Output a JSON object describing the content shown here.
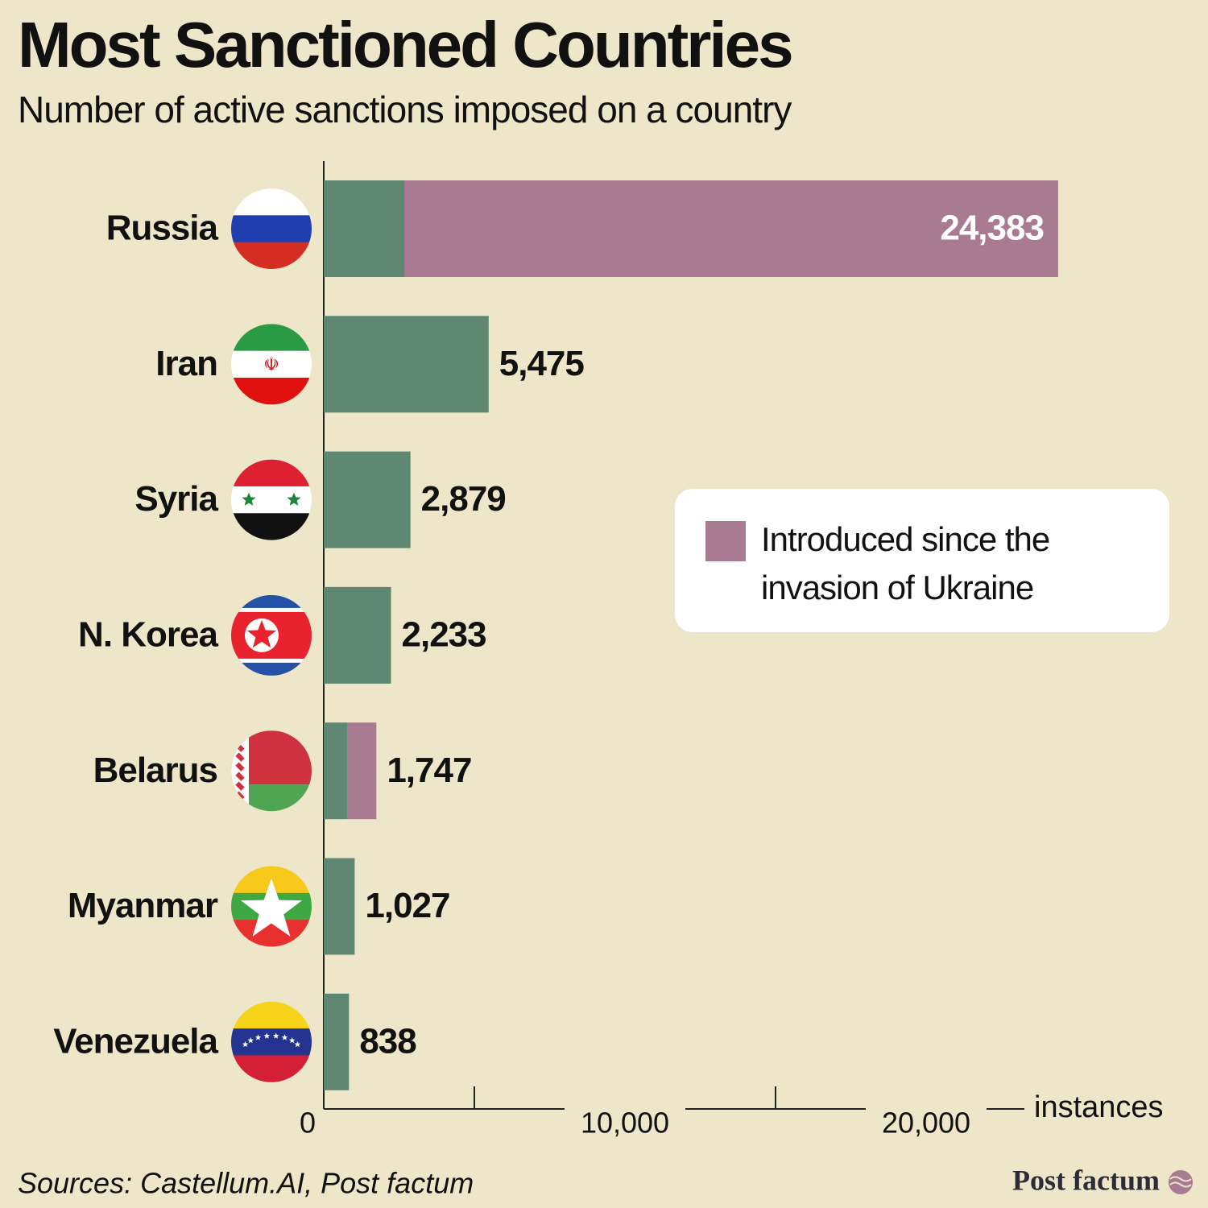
{
  "chart_data": {
    "type": "stacked-bar-horizontal",
    "title": "Most Sanctioned Countries",
    "subtitle": "Number of active sanctions imposed on a country",
    "categories": [
      "Russia",
      "Iran",
      "Syria",
      "N. Korea",
      "Belarus",
      "Myanmar",
      "Venezuela"
    ],
    "series": [
      {
        "color": "#5e8872",
        "values": [
          2674,
          5475,
          2879,
          2233,
          775,
          1027,
          838
        ]
      },
      {
        "name": "Introduced since the invasion of Ukraine",
        "color": "#a87b92",
        "values": [
          21709,
          0,
          0,
          0,
          972,
          0,
          0
        ]
      }
    ],
    "totals": [
      24383,
      5475,
      2879,
      2233,
      1747,
      1027,
      838
    ],
    "total_labels": [
      "24,383",
      "5,475",
      "2,879",
      "2,233",
      "1,747",
      "1,027",
      "838"
    ],
    "xlim": [
      0,
      25000
    ],
    "xticks": [
      0,
      {
        "value": 10000,
        "label": "10,000"
      },
      {
        "value": 20000,
        "label": "20,000"
      }
    ],
    "xminorticks": [
      5000,
      15000
    ],
    "xlabel": "instances",
    "source": "Sources: Castellum.AI, Post factum",
    "brand": "Post factum"
  }
}
